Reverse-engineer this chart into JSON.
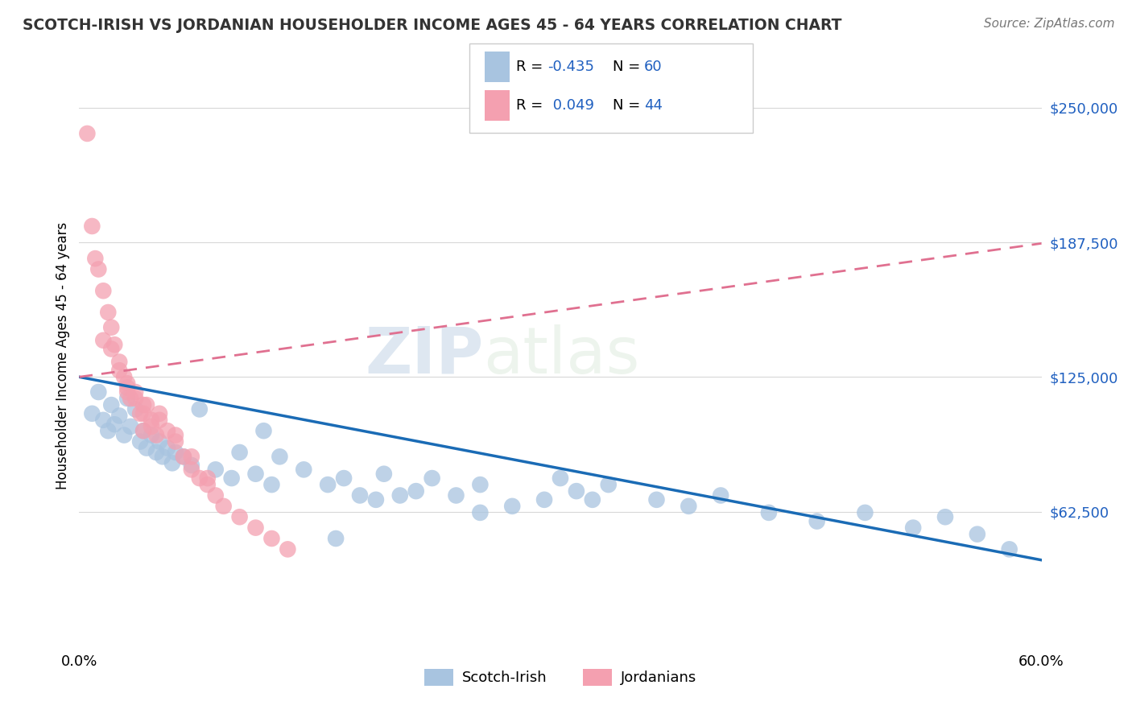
{
  "title": "SCOTCH-IRISH VS JORDANIAN HOUSEHOLDER INCOME AGES 45 - 64 YEARS CORRELATION CHART",
  "source": "Source: ZipAtlas.com",
  "ylabel": "Householder Income Ages 45 - 64 years",
  "ytick_labels": [
    "$62,500",
    "$125,000",
    "$187,500",
    "$250,000"
  ],
  "ytick_values": [
    62500,
    125000,
    187500,
    250000
  ],
  "xlim": [
    0.0,
    0.6
  ],
  "ylim": [
    0,
    270000
  ],
  "scotch_irish_color": "#a8c4e0",
  "jordanian_color": "#f4a0b0",
  "scotch_irish_line_color": "#1a6bb5",
  "jordanian_line_color": "#e07090",
  "watermark_zip": "ZIP",
  "watermark_atlas": "atlas",
  "scotch_irish_x": [
    0.008,
    0.012,
    0.015,
    0.018,
    0.02,
    0.022,
    0.025,
    0.028,
    0.03,
    0.032,
    0.035,
    0.038,
    0.04,
    0.042,
    0.045,
    0.048,
    0.05,
    0.052,
    0.055,
    0.058,
    0.06,
    0.065,
    0.07,
    0.075,
    0.085,
    0.095,
    0.1,
    0.11,
    0.115,
    0.12,
    0.125,
    0.14,
    0.155,
    0.165,
    0.175,
    0.185,
    0.19,
    0.21,
    0.22,
    0.235,
    0.25,
    0.27,
    0.29,
    0.31,
    0.33,
    0.36,
    0.38,
    0.4,
    0.43,
    0.46,
    0.49,
    0.52,
    0.54,
    0.56,
    0.58,
    0.3,
    0.25,
    0.32,
    0.16,
    0.2
  ],
  "scotch_irish_y": [
    108000,
    118000,
    105000,
    100000,
    112000,
    103000,
    107000,
    98000,
    115000,
    102000,
    110000,
    95000,
    100000,
    92000,
    98000,
    90000,
    95000,
    88000,
    92000,
    85000,
    90000,
    88000,
    84000,
    110000,
    82000,
    78000,
    90000,
    80000,
    100000,
    75000,
    88000,
    82000,
    75000,
    78000,
    70000,
    68000,
    80000,
    72000,
    78000,
    70000,
    75000,
    65000,
    68000,
    72000,
    75000,
    68000,
    65000,
    70000,
    62000,
    58000,
    62000,
    55000,
    60000,
    52000,
    45000,
    78000,
    62000,
    68000,
    50000,
    70000
  ],
  "jordanian_x": [
    0.005,
    0.008,
    0.01,
    0.012,
    0.015,
    0.018,
    0.02,
    0.022,
    0.025,
    0.028,
    0.03,
    0.032,
    0.035,
    0.038,
    0.04,
    0.042,
    0.045,
    0.048,
    0.05,
    0.055,
    0.06,
    0.065,
    0.07,
    0.075,
    0.08,
    0.085,
    0.09,
    0.1,
    0.11,
    0.12,
    0.13,
    0.025,
    0.03,
    0.035,
    0.04,
    0.045,
    0.015,
    0.02,
    0.03,
    0.04,
    0.05,
    0.06,
    0.07,
    0.08
  ],
  "jordanian_y": [
    238000,
    195000,
    180000,
    175000,
    165000,
    155000,
    148000,
    140000,
    132000,
    125000,
    120000,
    115000,
    118000,
    108000,
    100000,
    112000,
    105000,
    98000,
    108000,
    100000,
    95000,
    88000,
    82000,
    78000,
    75000,
    70000,
    65000,
    60000,
    55000,
    50000,
    45000,
    128000,
    122000,
    115000,
    108000,
    102000,
    142000,
    138000,
    118000,
    112000,
    105000,
    98000,
    88000,
    78000
  ]
}
